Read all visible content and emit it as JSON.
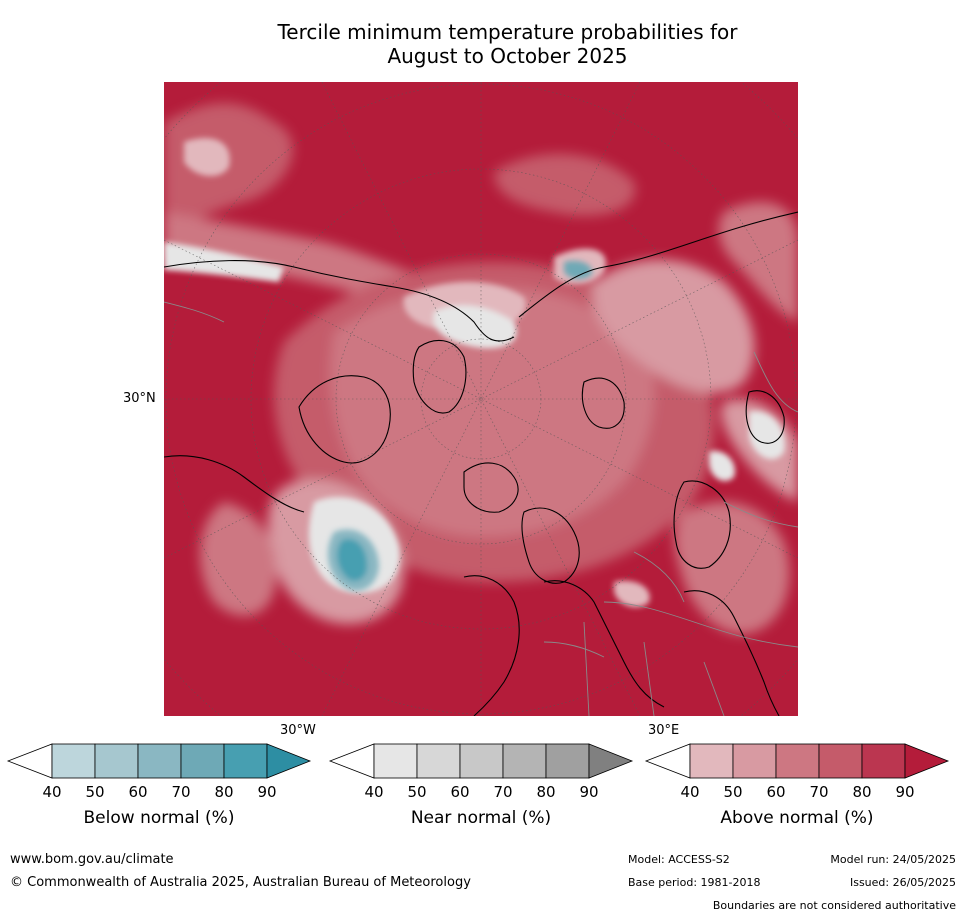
{
  "title": {
    "line1": "Tercile minimum temperature probabilities for",
    "line2": "August to October 2025"
  },
  "map": {
    "projection": "north-polar-stereographic",
    "lat_label": "30°N",
    "lon_labels": {
      "west": "30°W",
      "east": "30°E"
    },
    "background_color": "#b41c3a",
    "annotations": [
      "widespread above normal (90%) across Northern Hemisphere",
      "below normal area over Greenland Sea / North Atlantic"
    ]
  },
  "colorbars": [
    {
      "label": "Below normal (%)",
      "ticks": [
        "40",
        "50",
        "60",
        "70",
        "80",
        "90"
      ],
      "colors": [
        "#ffffff",
        "#bdd6dc",
        "#a6c7cf",
        "#8ab7c2",
        "#6ea9b6",
        "#479fb1",
        "#2d8ea3"
      ]
    },
    {
      "label": "Near normal (%)",
      "ticks": [
        "40",
        "50",
        "60",
        "70",
        "80",
        "90"
      ],
      "colors": [
        "#ffffff",
        "#e6e6e6",
        "#d7d7d7",
        "#c8c8c8",
        "#b4b4b4",
        "#a0a0a0",
        "#808080"
      ]
    },
    {
      "label": "Above normal (%)",
      "ticks": [
        "40",
        "50",
        "60",
        "70",
        "80",
        "90"
      ],
      "colors": [
        "#ffffff",
        "#e2b8bd",
        "#d89aa2",
        "#cd7782",
        "#c55b6a",
        "#bb3650",
        "#b41c3a"
      ]
    }
  ],
  "footer": {
    "website": "www.bom.gov.au/climate",
    "copyright": "© Commonwealth of Australia 2025, Australian Bureau of Meteorology",
    "model": "Model: ACCESS-S2",
    "base_period": "Base period: 1981-2018",
    "model_run": "Model run: 24/05/2025",
    "issued": "Issued: 26/05/2025",
    "disclaimer": "Boundaries are not considered authoritative"
  }
}
